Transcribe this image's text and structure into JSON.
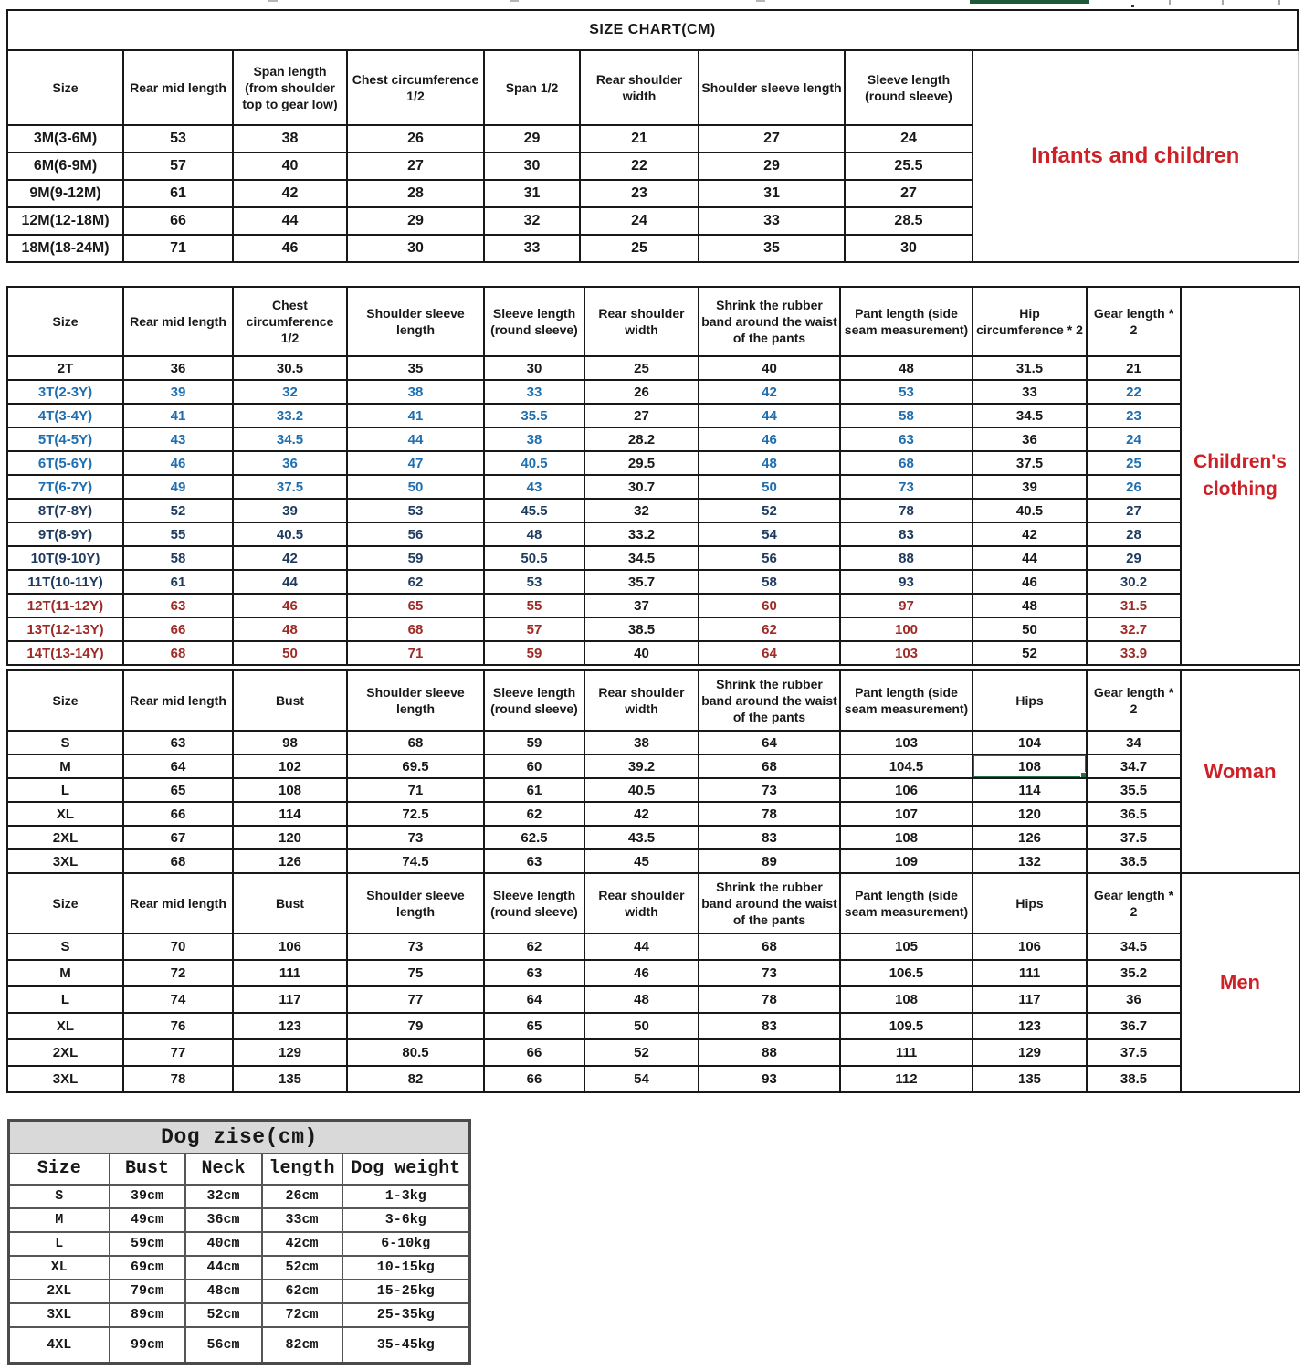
{
  "page": {
    "title": "SIZE CHART(CM)"
  },
  "colors": {
    "black": "#181818",
    "blue": "#1e6eb0",
    "navy": "#1e3a5f",
    "red": "#9e2a26",
    "label_red": "#cd2127",
    "selection_green": "#217346",
    "top_strip_green": "#1d5a38",
    "dog_header_gray": "#d9d9d9"
  },
  "infants_table": {
    "group_label": "Infants and children",
    "headers": [
      "Size",
      "Rear mid length",
      "Span length (from shoulder top to gear low)",
      "Chest circumference 1/2",
      "Span 1/2",
      "Rear shoulder width",
      "Shoulder sleeve length",
      "Sleeve length (round sleeve)"
    ],
    "rows": [
      [
        "3M(3-6M)",
        "53",
        "38",
        "26",
        "29",
        "21",
        "27",
        "24"
      ],
      [
        "6M(6-9M)",
        "57",
        "40",
        "27",
        "30",
        "22",
        "29",
        "25.5"
      ],
      [
        "9M(9-12M)",
        "61",
        "42",
        "28",
        "31",
        "23",
        "31",
        "27"
      ],
      [
        "12M(12-18M)",
        "66",
        "44",
        "29",
        "32",
        "24",
        "33",
        "28.5"
      ],
      [
        "18M(18-24M)",
        "71",
        "46",
        "30",
        "33",
        "25",
        "35",
        "30"
      ]
    ]
  },
  "children_table": {
    "group_label": "Children's clothing",
    "headers": [
      "Size",
      "Rear mid length",
      "Chest circumference 1/2",
      "Shoulder sleeve length",
      "Sleeve length (round sleeve)",
      "Rear shoulder width",
      "Shrink the rubber band around the waist of the pants",
      "Pant length (side seam measurement)",
      "Hip circumference * 2",
      "Gear length * 2"
    ],
    "rows": [
      [
        "2T",
        "36",
        "30.5",
        "35",
        "30",
        "25",
        "40",
        "48",
        "31.5",
        "21"
      ],
      [
        "3T(2-3Y)",
        "39",
        "32",
        "38",
        "33",
        "26",
        "42",
        "53",
        "33",
        "22"
      ],
      [
        "4T(3-4Y)",
        "41",
        "33.2",
        "41",
        "35.5",
        "27",
        "44",
        "58",
        "34.5",
        "23"
      ],
      [
        "5T(4-5Y)",
        "43",
        "34.5",
        "44",
        "38",
        "28.2",
        "46",
        "63",
        "36",
        "24"
      ],
      [
        "6T(5-6Y)",
        "46",
        "36",
        "47",
        "40.5",
        "29.5",
        "48",
        "68",
        "37.5",
        "25"
      ],
      [
        "7T(6-7Y)",
        "49",
        "37.5",
        "50",
        "43",
        "30.7",
        "50",
        "73",
        "39",
        "26"
      ],
      [
        "8T(7-8Y)",
        "52",
        "39",
        "53",
        "45.5",
        "32",
        "52",
        "78",
        "40.5",
        "27"
      ],
      [
        "9T(8-9Y)",
        "55",
        "40.5",
        "56",
        "48",
        "33.2",
        "54",
        "83",
        "42",
        "28"
      ],
      [
        "10T(9-10Y)",
        "58",
        "42",
        "59",
        "50.5",
        "34.5",
        "56",
        "88",
        "44",
        "29"
      ],
      [
        "11T(10-11Y)",
        "61",
        "44",
        "62",
        "53",
        "35.7",
        "58",
        "93",
        "46",
        "30.2"
      ],
      [
        "12T(11-12Y)",
        "63",
        "46",
        "65",
        "55",
        "37",
        "60",
        "97",
        "48",
        "31.5"
      ],
      [
        "13T(12-13Y)",
        "66",
        "48",
        "68",
        "57",
        "38.5",
        "62",
        "100",
        "50",
        "32.7"
      ],
      [
        "14T(13-14Y)",
        "68",
        "50",
        "71",
        "59",
        "40",
        "64",
        "103",
        "52",
        "33.9"
      ]
    ],
    "row_colors": [
      "black",
      "blue",
      "blue",
      "blue",
      "blue",
      "blue",
      "navy",
      "navy",
      "navy",
      "navy",
      "red",
      "red",
      "red"
    ],
    "always_black_columns": [
      5,
      8
    ]
  },
  "woman_table": {
    "group_label": "Woman",
    "headers": [
      "Size",
      "Rear mid length",
      "Bust",
      "Shoulder sleeve length",
      "Sleeve length (round sleeve)",
      "Rear shoulder width",
      "Shrink the rubber band around the waist of the pants",
      "Pant length (side seam measurement)",
      "Hips",
      "Gear length * 2"
    ],
    "rows": [
      [
        "S",
        "63",
        "98",
        "68",
        "59",
        "38",
        "64",
        "103",
        "104",
        "34"
      ],
      [
        "M",
        "64",
        "102",
        "69.5",
        "60",
        "39.2",
        "68",
        "104.5",
        "108",
        "34.7"
      ],
      [
        "L",
        "65",
        "108",
        "71",
        "61",
        "40.5",
        "73",
        "106",
        "114",
        "35.5"
      ],
      [
        "XL",
        "66",
        "114",
        "72.5",
        "62",
        "42",
        "78",
        "107",
        "120",
        "36.5"
      ],
      [
        "2XL",
        "67",
        "120",
        "73",
        "62.5",
        "43.5",
        "83",
        "108",
        "126",
        "37.5"
      ],
      [
        "3XL",
        "68",
        "126",
        "74.5",
        "63",
        "45",
        "89",
        "109",
        "132",
        "38.5"
      ]
    ],
    "selected_cell": {
      "row": 1,
      "col": 8,
      "value": "108"
    }
  },
  "men_table": {
    "group_label": "Men",
    "headers": [
      "Size",
      "Rear mid length",
      "Bust",
      "Shoulder sleeve length",
      "Sleeve length (round sleeve)",
      "Rear shoulder width",
      "Shrink the rubber band around the waist of the pants",
      "Pant length (side seam measurement)",
      "Hips",
      "Gear length * 2"
    ],
    "rows": [
      [
        "S",
        "70",
        "106",
        "73",
        "62",
        "44",
        "68",
        "105",
        "106",
        "34.5"
      ],
      [
        "M",
        "72",
        "111",
        "75",
        "63",
        "46",
        "73",
        "106.5",
        "111",
        "35.2"
      ],
      [
        "L",
        "74",
        "117",
        "77",
        "64",
        "48",
        "78",
        "108",
        "117",
        "36"
      ],
      [
        "XL",
        "76",
        "123",
        "79",
        "65",
        "50",
        "83",
        "109.5",
        "123",
        "36.7"
      ],
      [
        "2XL",
        "77",
        "129",
        "80.5",
        "66",
        "52",
        "88",
        "111",
        "129",
        "37.5"
      ],
      [
        "3XL",
        "78",
        "135",
        "82",
        "66",
        "54",
        "93",
        "112",
        "135",
        "38.5"
      ]
    ]
  },
  "dog_table": {
    "title": "Dog zise(cm)",
    "headers": [
      "Size",
      "Bust",
      "Neck",
      "length",
      "Dog weight"
    ],
    "rows": [
      [
        "S",
        "39cm",
        "32cm",
        "26cm",
        "1-3kg"
      ],
      [
        "M",
        "49cm",
        "36cm",
        "33cm",
        "3-6kg"
      ],
      [
        "L",
        "59cm",
        "40cm",
        "42cm",
        "6-10kg"
      ],
      [
        "XL",
        "69cm",
        "44cm",
        "52cm",
        "10-15kg"
      ],
      [
        "2XL",
        "79cm",
        "48cm",
        "62cm",
        "15-25kg"
      ],
      [
        "3XL",
        "89cm",
        "52cm",
        "72cm",
        "25-35kg"
      ],
      [
        "4XL",
        "99cm",
        "56cm",
        "82cm",
        "35-45kg"
      ]
    ]
  }
}
